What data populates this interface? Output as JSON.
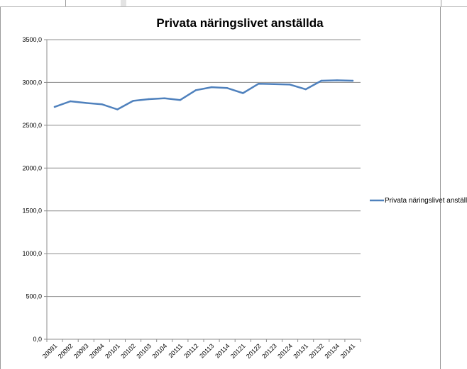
{
  "chart_data": {
    "type": "line",
    "title": "Privata näringslivet anställda",
    "xlabel": "",
    "ylabel": "",
    "ylim": [
      0,
      3500
    ],
    "y_ticks": [
      "0,0",
      "500,0",
      "1000,0",
      "1500,0",
      "2000,0",
      "2500,0",
      "3000,0",
      "3500,0"
    ],
    "grid": true,
    "legend_position": "right",
    "categories": [
      "20091",
      "20092",
      "20093",
      "20094",
      "20101",
      "20102",
      "20103",
      "20104",
      "20111",
      "20112",
      "20113",
      "20114",
      "20121",
      "20122",
      "20123",
      "20124",
      "20131",
      "20132",
      "20134",
      "20141"
    ],
    "series": [
      {
        "name": "Privata näringslivet anställda",
        "color": "#4f81bd",
        "values": [
          2715,
          2780,
          2760,
          2745,
          2685,
          2785,
          2805,
          2815,
          2795,
          2910,
          2945,
          2935,
          2875,
          2985,
          2980,
          2975,
          2920,
          3020,
          3025,
          3020
        ]
      }
    ]
  }
}
